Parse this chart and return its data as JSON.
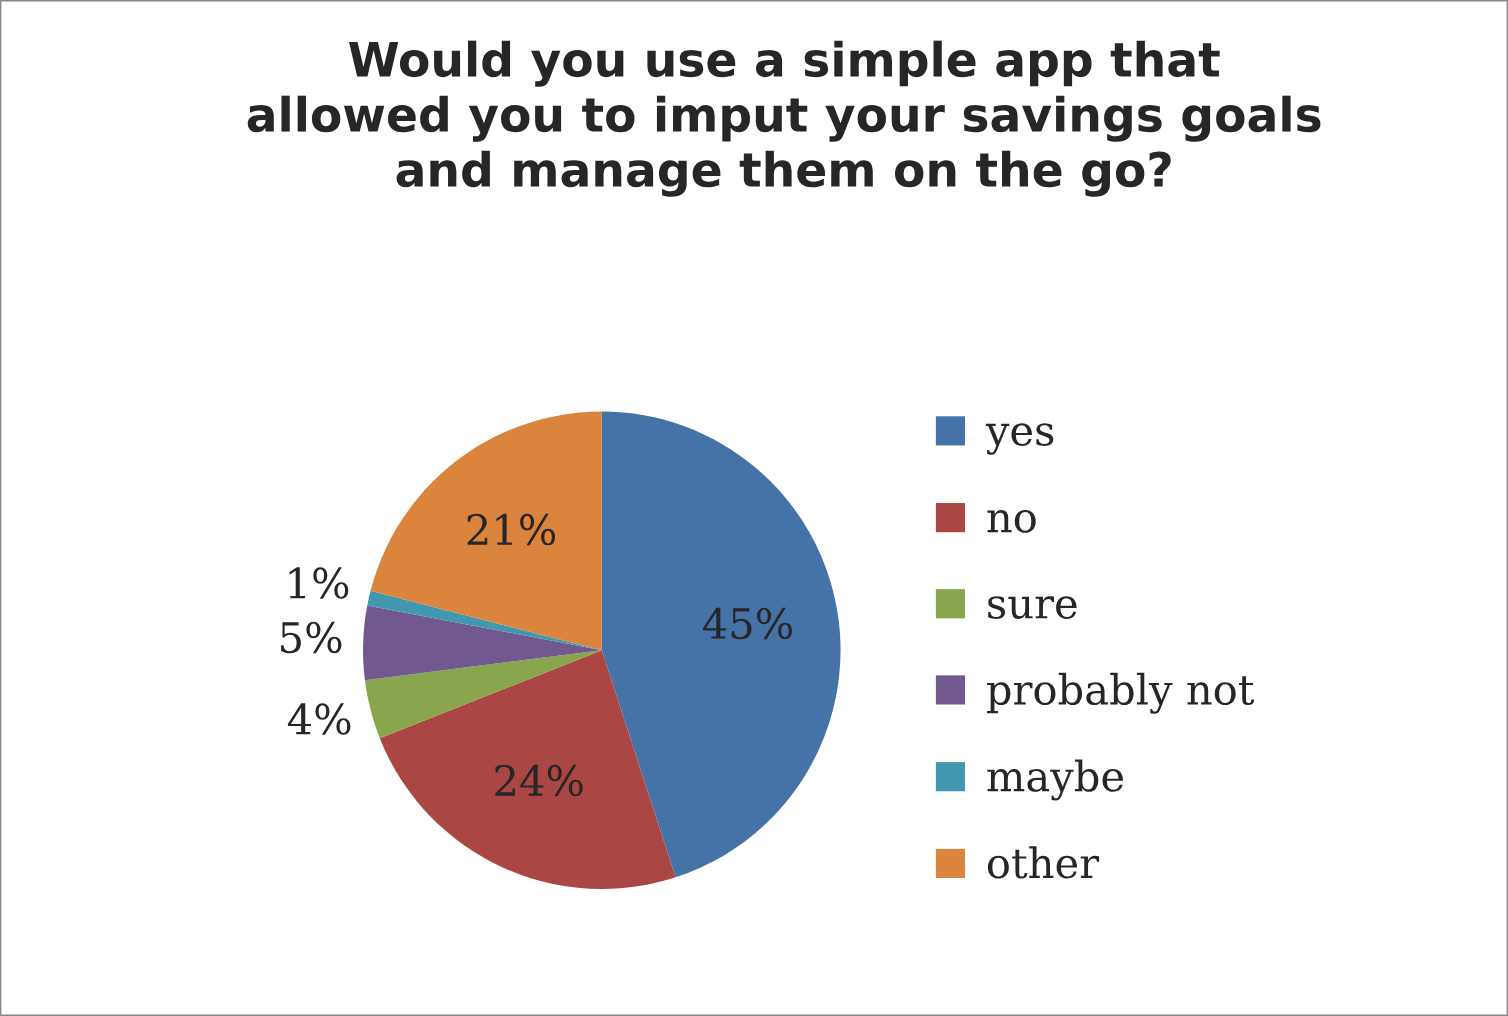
{
  "chart_data": {
    "type": "pie",
    "title": "Would you use a simple app that\nallowed you to imput your savings goals\nand manage them on the go?",
    "categories": [
      "yes",
      "no",
      "sure",
      "probably not",
      "maybe",
      "other"
    ],
    "values": [
      45,
      24,
      4,
      5,
      1,
      21
    ],
    "colors": [
      "#4572a7",
      "#aa4643",
      "#89a54e",
      "#71588f",
      "#4198af",
      "#db843d"
    ],
    "value_labels": [
      "45%",
      "24%",
      "4%",
      "5%",
      "1%",
      "21%"
    ],
    "legend": "right"
  }
}
